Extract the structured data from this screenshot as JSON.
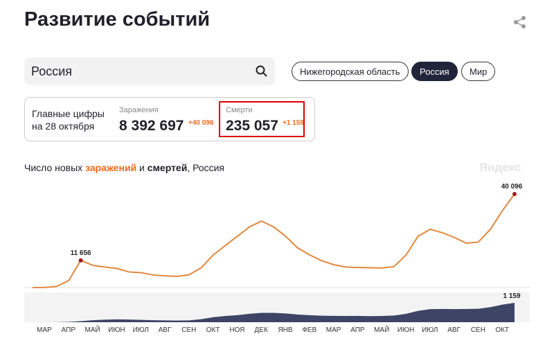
{
  "header": {
    "title": "Развитие событий"
  },
  "search": {
    "value": "Россия"
  },
  "regions": [
    "Нижегородская область",
    "Россия",
    "Мир"
  ],
  "active_region": 1,
  "summary": {
    "caption": [
      "Главные цифры",
      "на 28 октября"
    ],
    "cases": {
      "label": "Заражения",
      "total": "8 392 697",
      "delta": "+40 096"
    },
    "deaths": {
      "label": "Смерти",
      "total": "235 057",
      "delta": "+1 159"
    }
  },
  "chart_data": {
    "type": "line",
    "title_parts": [
      "Число новых ",
      "заражений",
      " и ",
      "смертей",
      ", Россия"
    ],
    "watermark": "Яндекс",
    "categories": [
      "МАР",
      null,
      "АПР",
      null,
      "МАЙ",
      null,
      "ИЮН",
      null,
      "ИЮЛ",
      null,
      "АВГ",
      null,
      "СЕН",
      null,
      "ОКТ",
      null,
      "НОЯ",
      null,
      "ДЕК",
      null,
      "ЯНВ",
      null,
      "ФЕВ",
      null,
      "МАР",
      null,
      "АПР",
      null,
      "МАЙ",
      null,
      "ИЮН",
      null,
      "ИЮЛ",
      null,
      "АВГ",
      null,
      "СЕН",
      null,
      "ОКТ",
      null,
      null
    ],
    "series": [
      {
        "name": "заражений",
        "color": "#e2873d",
        "values": [
          0,
          50,
          500,
          3000,
          11656,
          9500,
          8800,
          8200,
          6700,
          6400,
          5400,
          5000,
          4800,
          5500,
          8500,
          14000,
          18000,
          22000,
          26000,
          28500,
          26000,
          22000,
          17000,
          14000,
          11500,
          9800,
          8800,
          8600,
          8500,
          8400,
          9000,
          14000,
          22000,
          25000,
          23500,
          21500,
          19000,
          19500,
          25000,
          33000,
          40096
        ],
        "value_labels": [
          null,
          null,
          null,
          null,
          "11 656",
          null,
          null,
          null,
          null,
          null,
          null,
          null,
          null,
          null,
          null,
          null,
          null,
          null,
          null,
          null,
          null,
          null,
          null,
          null,
          null,
          null,
          null,
          null,
          null,
          null,
          null,
          null,
          null,
          null,
          null,
          null,
          null,
          null,
          null,
          null,
          "40 096"
        ]
      },
      {
        "name": "смертей",
        "color": "#3d4466",
        "values": [
          0,
          0,
          5,
          20,
          60,
          120,
          150,
          170,
          160,
          140,
          120,
          110,
          100,
          110,
          180,
          300,
          370,
          420,
          500,
          560,
          560,
          520,
          460,
          420,
          390,
          380,
          370,
          380,
          360,
          370,
          400,
          500,
          680,
          780,
          790,
          780,
          790,
          800,
          900,
          1050,
          1159
        ],
        "value_labels": [
          null,
          null,
          null,
          null,
          null,
          null,
          null,
          null,
          null,
          null,
          null,
          null,
          null,
          null,
          null,
          null,
          null,
          null,
          null,
          null,
          null,
          null,
          null,
          null,
          null,
          null,
          null,
          null,
          null,
          null,
          null,
          null,
          null,
          null,
          null,
          null,
          null,
          null,
          null,
          null,
          "1 159"
        ]
      }
    ],
    "ylim": [
      0,
      40096
    ],
    "y2lim": [
      0,
      1159
    ]
  }
}
